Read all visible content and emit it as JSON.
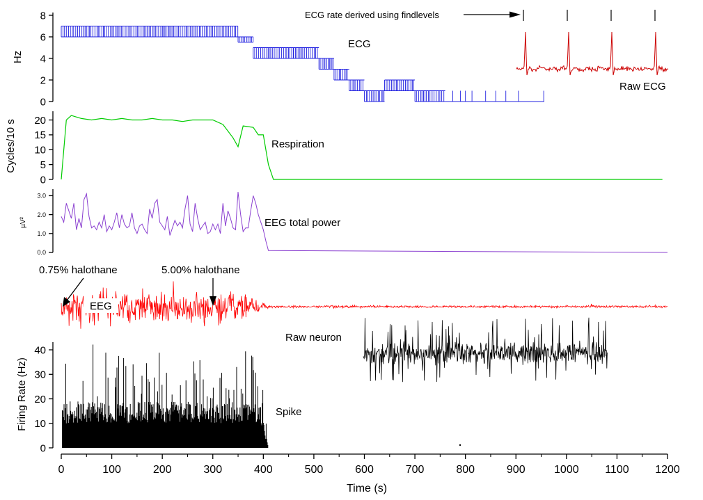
{
  "chart_data": {
    "type": "line",
    "xlabel": "Time (s)",
    "xlim": [
      0,
      1200
    ],
    "xticks": [
      0,
      100,
      200,
      300,
      400,
      500,
      600,
      700,
      800,
      900,
      1000,
      1100,
      1200
    ],
    "colors": {
      "ecg": "#2020e0",
      "raw_ecg": "#cc0000",
      "resp": "#00cc00",
      "eeg_power": "#8a3fd0",
      "eeg": "#ff0000",
      "neuron": "#000000",
      "spike": "#000000"
    },
    "panels": {
      "ecg": {
        "ylabel": "Hz",
        "ylim": [
          0,
          8
        ],
        "yticks": [
          0,
          2,
          4,
          6,
          8
        ],
        "series_label": "ECG",
        "inset_label": "Raw ECG",
        "annotation": "ECG rate derived using findlevels",
        "level_segments": [
          {
            "x": [
              0,
              350
            ],
            "y": 6,
            "alt": 7
          },
          {
            "x": [
              350,
              380
            ],
            "y": 5.5,
            "alt": 6
          },
          {
            "x": [
              380,
              460
            ],
            "y": 5,
            "alt": 4
          },
          {
            "x": [
              460,
              510
            ],
            "y": 4,
            "alt": 5
          },
          {
            "x": [
              510,
              540
            ],
            "y": 4,
            "alt": 3
          },
          {
            "x": [
              540,
              570
            ],
            "y": 3,
            "alt": 2
          },
          {
            "x": [
              570,
              600
            ],
            "y": 2,
            "alt": 1
          },
          {
            "x": [
              600,
              640
            ],
            "y": 1,
            "alt": 0
          },
          {
            "x": [
              640,
              700
            ],
            "y": 1,
            "alt": 2
          },
          {
            "x": [
              700,
              760
            ],
            "y": 0,
            "alt": 1
          },
          {
            "x": [
              760,
              956
            ],
            "y": 0,
            "alt": 0
          }
        ]
      },
      "respiration": {
        "ylabel": "Cycles/10 s",
        "ylim": [
          0,
          22
        ],
        "yticks": [
          0,
          5,
          10,
          15,
          20
        ],
        "series_label": "Respiration",
        "x": [
          0,
          10,
          20,
          40,
          60,
          80,
          100,
          120,
          140,
          160,
          180,
          200,
          220,
          240,
          260,
          280,
          300,
          320,
          340,
          350,
          360,
          380,
          390,
          400,
          410,
          420,
          1190
        ],
        "y": [
          0,
          20,
          21.5,
          20.5,
          20,
          20.5,
          20,
          20.5,
          20,
          20,
          20.5,
          20,
          20,
          19.5,
          20,
          20,
          20,
          18.5,
          14,
          11,
          18,
          17.5,
          15,
          15,
          5,
          0,
          0
        ]
      },
      "eeg_power": {
        "ylabel": "µV²",
        "ylim": [
          0,
          3.2
        ],
        "yticks": [
          "0.0",
          "1.0",
          "2.0",
          "3.0"
        ],
        "series_label": "EEG total power",
        "x": [
          0,
          5,
          10,
          15,
          20,
          25,
          30,
          35,
          40,
          45,
          50,
          55,
          60,
          65,
          70,
          75,
          80,
          85,
          90,
          95,
          100,
          105,
          110,
          115,
          120,
          125,
          130,
          135,
          140,
          145,
          150,
          155,
          160,
          165,
          170,
          175,
          180,
          185,
          190,
          195,
          200,
          205,
          210,
          215,
          220,
          225,
          230,
          235,
          240,
          245,
          250,
          255,
          260,
          265,
          270,
          275,
          280,
          285,
          290,
          295,
          300,
          305,
          310,
          315,
          320,
          325,
          330,
          335,
          340,
          345,
          350,
          355,
          360,
          365,
          370,
          375,
          380,
          385,
          390,
          395,
          400,
          405,
          410,
          1200
        ],
        "y": [
          1.9,
          1.6,
          2.6,
          2.2,
          1.8,
          2.6,
          1.2,
          1.8,
          1.3,
          2.8,
          3.1,
          1.9,
          1.3,
          1.4,
          1.2,
          1.6,
          1.3,
          2.0,
          1.1,
          1.4,
          1.2,
          1.6,
          2.1,
          1.3,
          2.0,
          1.5,
          1.3,
          1.4,
          2.1,
          1.3,
          1.0,
          1.4,
          1.5,
          1.2,
          1.0,
          2.3,
          1.8,
          2.6,
          2.8,
          1.6,
          1.4,
          1.2,
          1.9,
          0.9,
          1.3,
          1.7,
          1.4,
          1.6,
          1.3,
          2.3,
          3.0,
          1.5,
          1.1,
          2.6,
          1.8,
          1.2,
          1.4,
          1.6,
          1.0,
          1.1,
          1.5,
          1.2,
          1.5,
          1.0,
          2.6,
          1.4,
          2.2,
          1.8,
          1.3,
          1.2,
          3.2,
          2.0,
          1.1,
          1.3,
          1.3,
          2.2,
          3.0,
          2.6,
          2.0,
          1.6,
          1.2,
          0.6,
          0.1,
          0.0
        ]
      },
      "eeg": {
        "series_label": "EEG",
        "annotations": [
          {
            "label": "0.75% halothane",
            "x": 0
          },
          {
            "label": "5.00% halothane",
            "x": 300
          }
        ]
      },
      "neuron": {
        "series_label": "Raw neuron"
      },
      "spike": {
        "ylabel": "Firing Rate (Hz)",
        "ylim": [
          0,
          42
        ],
        "yticks": [
          0,
          10,
          20,
          30,
          40
        ],
        "series_label": "Spike"
      }
    }
  }
}
